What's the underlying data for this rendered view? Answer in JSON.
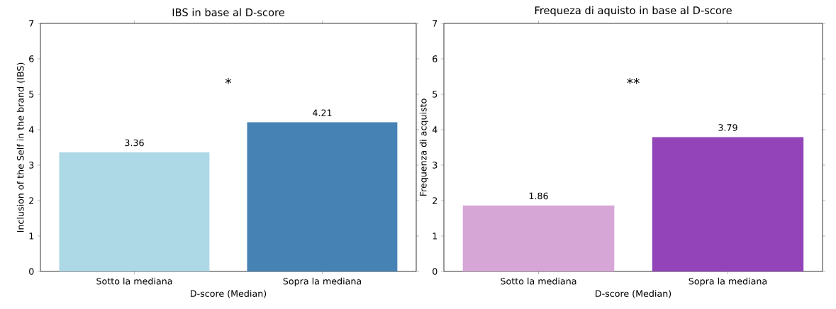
{
  "chart_data": [
    {
      "type": "bar",
      "title": "IBS in base al D-score",
      "xlabel": "D-score (Median)",
      "ylabel": "Inclusion of the Self in the brand (IBS)",
      "categories": [
        "Sotto la mediana",
        "Sopra la mediana"
      ],
      "values": [
        3.36,
        4.21
      ],
      "colors": [
        "#add8e6",
        "#4682b4"
      ],
      "ylim": [
        0,
        7
      ],
      "yticks": [
        0,
        1,
        2,
        3,
        4,
        5,
        6,
        7
      ],
      "data_labels": true,
      "grid": false,
      "annotations": [
        "*"
      ]
    },
    {
      "type": "bar",
      "title": "Frequeza di aquisto in base al D-score",
      "xlabel": "D-score (Median)",
      "ylabel": "Frequenza di acquisto",
      "categories": [
        "Sotto la mediana",
        "Sopra la mediana"
      ],
      "values": [
        1.86,
        3.79
      ],
      "colors": [
        "#d6a6d6",
        "#9244b8"
      ],
      "ylim": [
        0,
        7
      ],
      "yticks": [
        0,
        1,
        2,
        3,
        4,
        5,
        6,
        7
      ],
      "data_labels": true,
      "grid": false,
      "annotations": [
        "**"
      ]
    }
  ]
}
